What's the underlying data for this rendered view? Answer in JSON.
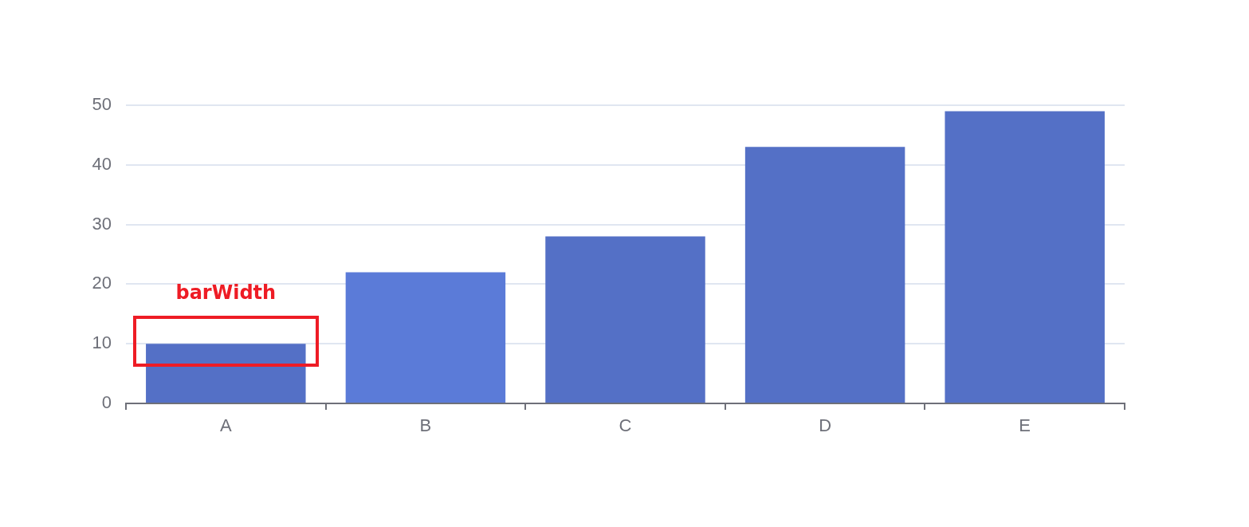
{
  "chart_data": {
    "type": "bar",
    "categories": [
      "A",
      "B",
      "C",
      "D",
      "E"
    ],
    "values": [
      10,
      22,
      28,
      43,
      49
    ],
    "colors": [
      "#5470c6",
      "#5b7bd8",
      "#5470c6",
      "#5470c6",
      "#5470c6"
    ],
    "ylim": [
      0,
      50
    ],
    "yticks": [
      0,
      10,
      20,
      30,
      40,
      50
    ],
    "grid": "y",
    "annotations": [
      "barWidth"
    ]
  }
}
